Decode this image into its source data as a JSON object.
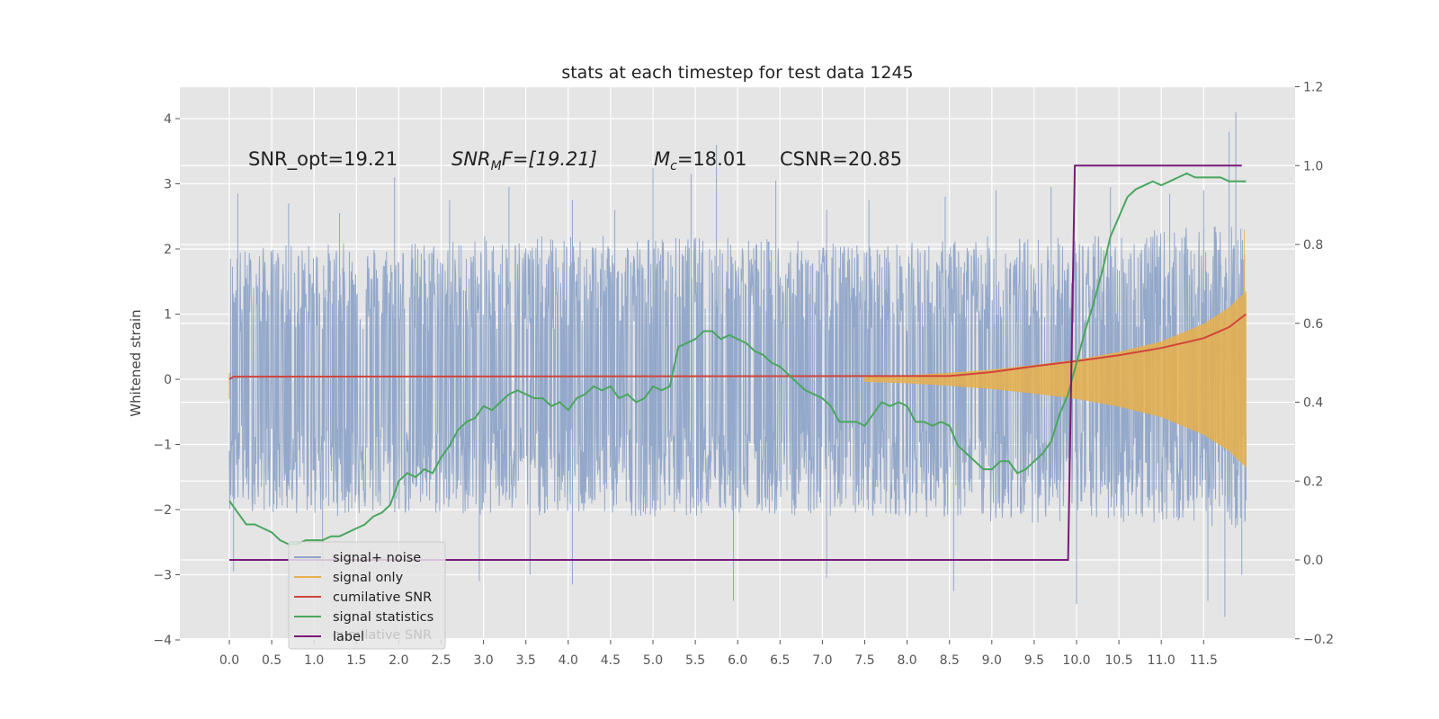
{
  "chart_data": {
    "type": "line",
    "title": "stats at each timestep for test data 1245",
    "ylabel": "Whitened strain",
    "xlabel": "",
    "xlim": [
      -0.1,
      12.5
    ],
    "ylim": [
      -4,
      4.5
    ],
    "y2lim": [
      -0.2,
      1.2
    ],
    "x_ticks": [
      "0.0",
      "0.5",
      "1.0",
      "1.5",
      "2.0",
      "2.5",
      "3.0",
      "3.5",
      "4.0",
      "4.5",
      "5.0",
      "5.5",
      "6.0",
      "6.5",
      "7.0",
      "7.5",
      "8.0",
      "8.5",
      "9.0",
      "9.5",
      "10.0",
      "10.5",
      "11.0",
      "11.5"
    ],
    "x_tick_values": [
      0,
      0.5,
      1,
      1.5,
      2,
      2.5,
      3,
      3.5,
      4,
      4.5,
      5,
      5.5,
      6,
      6.5,
      7,
      7.5,
      8,
      8.5,
      9,
      9.5,
      10,
      10.5,
      11,
      11.5
    ],
    "y_ticks": [
      "4",
      "3",
      "2",
      "1",
      "0",
      "−1",
      "−2",
      "−3",
      "−4"
    ],
    "y_tick_values": [
      4,
      3,
      2,
      1,
      0,
      -1,
      -2,
      -3,
      -4
    ],
    "y2_ticks": [
      "1.2",
      "1.0",
      "0.8",
      "0.6",
      "0.4",
      "0.2",
      "0.0",
      "−0.2"
    ],
    "y2_tick_values": [
      1.2,
      1.0,
      0.8,
      0.6,
      0.4,
      0.2,
      0.0,
      -0.2
    ],
    "grid": true,
    "legend_position": "lower-left",
    "annotations": {
      "snr_opt": "SNR_opt=19.21",
      "snr_mf_base": "SNR",
      "snr_mf_sub": "M",
      "snr_mf_rest": "F=[19.21]",
      "mc_base": "M",
      "mc_sub": "c",
      "mc_rest": "=18.01",
      "csnr": "CSNR=20.85"
    },
    "legend_ghost": "cumilative SNR",
    "series": [
      {
        "name": "signal+ noise",
        "color": "#8ea4c8",
        "axis": "left",
        "x_range": [
          0,
          12.0
        ],
        "envelope_upper": [
          [
            0,
            2.0
          ],
          [
            1,
            2.1
          ],
          [
            2,
            2.1
          ],
          [
            3,
            2.2
          ],
          [
            4,
            2.2
          ],
          [
            5,
            2.2
          ],
          [
            6,
            2.2
          ],
          [
            7,
            2.1
          ],
          [
            8,
            2.1
          ],
          [
            9,
            2.2
          ],
          [
            10,
            2.2
          ],
          [
            11,
            2.3
          ],
          [
            12,
            2.4
          ]
        ],
        "envelope_lower": [
          [
            0,
            -2.0
          ],
          [
            1,
            -2.1
          ],
          [
            2,
            -2.1
          ],
          [
            3,
            -2.1
          ],
          [
            4,
            -2.1
          ],
          [
            5,
            -2.1
          ],
          [
            6,
            -2.1
          ],
          [
            7,
            -2.1
          ],
          [
            8,
            -2.1
          ],
          [
            9,
            -2.2
          ],
          [
            10,
            -2.2
          ],
          [
            11,
            -2.2
          ],
          [
            12,
            -2.3
          ]
        ],
        "spikes": [
          [
            0.1,
            2.85
          ],
          [
            0.7,
            2.7
          ],
          [
            1.3,
            2.55
          ],
          [
            1.95,
            3.1
          ],
          [
            2.6,
            2.75
          ],
          [
            3.3,
            2.95
          ],
          [
            4.05,
            2.75
          ],
          [
            4.55,
            2.6
          ],
          [
            5.0,
            3.25
          ],
          [
            5.45,
            3.15
          ],
          [
            5.75,
            3.6
          ],
          [
            6.45,
            3.05
          ],
          [
            7.05,
            2.6
          ],
          [
            7.55,
            2.75
          ],
          [
            8.45,
            2.8
          ],
          [
            9.05,
            2.9
          ],
          [
            9.7,
            2.95
          ],
          [
            10.4,
            2.95
          ],
          [
            11.1,
            2.85
          ],
          [
            11.5,
            2.9
          ],
          [
            11.8,
            3.8
          ],
          [
            11.88,
            4.1
          ],
          [
            0.05,
            -2.95
          ],
          [
            1.1,
            -2.85
          ],
          [
            2.95,
            -3.1
          ],
          [
            3.55,
            -3.0
          ],
          [
            4.05,
            -3.15
          ],
          [
            5.95,
            -3.4
          ],
          [
            7.05,
            -3.05
          ],
          [
            8.55,
            -3.25
          ],
          [
            10.0,
            -3.45
          ],
          [
            11.55,
            -3.4
          ],
          [
            11.75,
            -3.65
          ],
          [
            11.95,
            -3.0
          ]
        ]
      },
      {
        "name": "signal only",
        "color": "#e8b04a",
        "axis": "left",
        "x_range": [
          0,
          12.0
        ],
        "envelope": [
          [
            0,
            0.03
          ],
          [
            7.5,
            0.04
          ],
          [
            8.0,
            0.06
          ],
          [
            8.5,
            0.1
          ],
          [
            9.0,
            0.15
          ],
          [
            9.5,
            0.22
          ],
          [
            10.0,
            0.3
          ],
          [
            10.5,
            0.42
          ],
          [
            11.0,
            0.58
          ],
          [
            11.5,
            0.85
          ],
          [
            11.8,
            1.1
          ],
          [
            12.0,
            1.35
          ]
        ],
        "tail_peak": 2.3
      },
      {
        "name": "cumilative SNR",
        "color": "#d1453b",
        "axis": "left",
        "x": [
          0,
          0.05,
          8.5,
          9.0,
          9.5,
          10.0,
          10.5,
          11.0,
          11.5,
          11.8,
          12.0
        ],
        "values": [
          0,
          0.04,
          0.05,
          0.11,
          0.2,
          0.28,
          0.37,
          0.48,
          0.63,
          0.8,
          1.0
        ]
      },
      {
        "name": "signal statistics",
        "color": "#4aa65e",
        "axis": "right",
        "x": [
          0,
          0.1,
          0.2,
          0.3,
          0.4,
          0.5,
          0.6,
          0.7,
          0.8,
          0.9,
          1.0,
          1.1,
          1.2,
          1.3,
          1.4,
          1.5,
          1.6,
          1.7,
          1.8,
          1.9,
          2.0,
          2.1,
          2.2,
          2.3,
          2.4,
          2.5,
          2.6,
          2.7,
          2.8,
          2.9,
          3.0,
          3.1,
          3.2,
          3.3,
          3.4,
          3.5,
          3.6,
          3.7,
          3.8,
          3.9,
          4.0,
          4.1,
          4.2,
          4.3,
          4.4,
          4.5,
          4.6,
          4.7,
          4.8,
          4.9,
          5.0,
          5.1,
          5.2,
          5.3,
          5.4,
          5.5,
          5.6,
          5.7,
          5.8,
          5.9,
          6.0,
          6.1,
          6.2,
          6.3,
          6.4,
          6.5,
          6.6,
          6.7,
          6.8,
          6.9,
          7.0,
          7.1,
          7.2,
          7.3,
          7.4,
          7.5,
          7.6,
          7.7,
          7.8,
          7.9,
          8.0,
          8.1,
          8.2,
          8.3,
          8.4,
          8.5,
          8.6,
          8.7,
          8.8,
          8.9,
          9.0,
          9.1,
          9.2,
          9.3,
          9.4,
          9.5,
          9.6,
          9.7,
          9.8,
          9.9,
          10.0,
          10.1,
          10.2,
          10.3,
          10.4,
          10.5,
          10.6,
          10.7,
          10.8,
          10.9,
          11.0,
          11.1,
          11.2,
          11.3,
          11.4,
          11.5,
          11.6,
          11.7,
          11.8,
          11.9,
          12.0
        ],
        "values": [
          0.15,
          0.12,
          0.09,
          0.09,
          0.08,
          0.07,
          0.05,
          0.04,
          0.04,
          0.05,
          0.05,
          0.05,
          0.06,
          0.06,
          0.07,
          0.08,
          0.09,
          0.11,
          0.12,
          0.14,
          0.2,
          0.22,
          0.21,
          0.23,
          0.22,
          0.26,
          0.29,
          0.33,
          0.35,
          0.36,
          0.39,
          0.38,
          0.4,
          0.42,
          0.43,
          0.42,
          0.41,
          0.41,
          0.39,
          0.4,
          0.38,
          0.41,
          0.42,
          0.44,
          0.43,
          0.44,
          0.41,
          0.42,
          0.4,
          0.41,
          0.44,
          0.43,
          0.44,
          0.54,
          0.55,
          0.56,
          0.58,
          0.58,
          0.56,
          0.57,
          0.56,
          0.55,
          0.53,
          0.52,
          0.5,
          0.49,
          0.47,
          0.45,
          0.43,
          0.42,
          0.41,
          0.39,
          0.35,
          0.35,
          0.35,
          0.34,
          0.37,
          0.4,
          0.39,
          0.4,
          0.39,
          0.35,
          0.35,
          0.34,
          0.35,
          0.34,
          0.29,
          0.27,
          0.25,
          0.23,
          0.23,
          0.25,
          0.25,
          0.22,
          0.23,
          0.25,
          0.27,
          0.3,
          0.37,
          0.42,
          0.5,
          0.58,
          0.65,
          0.73,
          0.82,
          0.87,
          0.92,
          0.94,
          0.95,
          0.96,
          0.95,
          0.96,
          0.97,
          0.98,
          0.97,
          0.97,
          0.97,
          0.97,
          0.96,
          0.96,
          0.96
        ]
      },
      {
        "name": "label",
        "color": "#7a1a7a",
        "axis": "right",
        "x": [
          0,
          9.9,
          9.98,
          11.95
        ],
        "values": [
          0,
          0,
          1,
          1
        ]
      }
    ]
  }
}
